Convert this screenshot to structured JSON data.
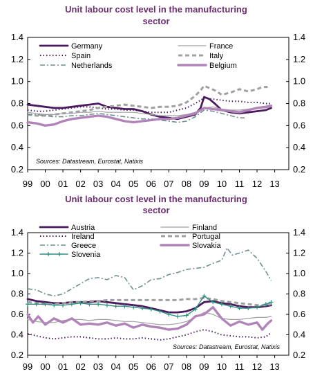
{
  "chart_data": [
    {
      "type": "line",
      "title_lines": [
        "Unit labour cost level in the manufacturing",
        "sector"
      ],
      "xlabel": "",
      "ylabel": "",
      "ylim": [
        0.2,
        1.4
      ],
      "yticks": [
        "0.2",
        "0.4",
        "0.6",
        "0.8",
        "1.0",
        "1.2",
        "1.4"
      ],
      "xlim": [
        1999,
        2013.8
      ],
      "xticks": [
        "99",
        "00",
        "01",
        "02",
        "03",
        "04",
        "05",
        "06",
        "07",
        "08",
        "09",
        "10",
        "11",
        "12",
        "13"
      ],
      "legend_position": "top",
      "source": "Sources: Datastream, Eurostat, Natixis",
      "series": [
        {
          "name": "Germany",
          "color": "#4b1a5e",
          "style": "solid-thick",
          "x": [
            1999,
            1999.5,
            2000,
            2000.5,
            2001,
            2001.5,
            2002,
            2002.5,
            2003,
            2003.5,
            2004,
            2004.5,
            2005,
            2005.5,
            2006,
            2006.5,
            2007,
            2007.5,
            2008,
            2008.5,
            2008.8,
            2009,
            2009.3,
            2009.6,
            2010,
            2010.5,
            2011,
            2011.5,
            2012,
            2012.5,
            2012.8
          ],
          "y": [
            0.79,
            0.78,
            0.77,
            0.76,
            0.76,
            0.77,
            0.78,
            0.79,
            0.8,
            0.77,
            0.76,
            0.75,
            0.75,
            0.73,
            0.7,
            0.68,
            0.67,
            0.66,
            0.68,
            0.7,
            0.76,
            0.86,
            0.84,
            0.8,
            0.74,
            0.72,
            0.71,
            0.72,
            0.73,
            0.74,
            0.76
          ]
        },
        {
          "name": "France",
          "color": "#a0a0a0",
          "style": "solid-thin",
          "x": [
            1999,
            1999.5,
            2000,
            2000.5,
            2001,
            2001.5,
            2002,
            2002.5,
            2003,
            2003.5,
            2004,
            2004.5,
            2005,
            2005.5,
            2006,
            2006.5,
            2007,
            2007.5,
            2008,
            2008.5,
            2009,
            2009.5,
            2010,
            2010.5,
            2011,
            2011.5,
            2012,
            2012.5,
            2012.8
          ],
          "y": [
            0.72,
            0.71,
            0.7,
            0.7,
            0.71,
            0.71,
            0.72,
            0.72,
            0.73,
            0.72,
            0.72,
            0.72,
            0.72,
            0.71,
            0.7,
            0.69,
            0.69,
            0.69,
            0.7,
            0.72,
            0.76,
            0.77,
            0.75,
            0.74,
            0.74,
            0.75,
            0.76,
            0.76,
            0.77
          ]
        },
        {
          "name": "Spain",
          "color": "#4b1a5e",
          "style": "dotted",
          "x": [
            1999,
            1999.5,
            2000,
            2000.5,
            2001,
            2001.5,
            2002,
            2002.5,
            2003,
            2003.5,
            2004,
            2004.5,
            2005,
            2005.5,
            2006,
            2006.5,
            2007,
            2007.5,
            2008,
            2008.5,
            2009,
            2009.5,
            2010,
            2010.5,
            2011,
            2011.5,
            2012,
            2012.5,
            2012.8
          ],
          "y": [
            0.74,
            0.73,
            0.73,
            0.74,
            0.75,
            0.76,
            0.77,
            0.77,
            0.76,
            0.75,
            0.75,
            0.74,
            0.74,
            0.73,
            0.72,
            0.72,
            0.72,
            0.74,
            0.76,
            0.8,
            0.85,
            0.84,
            0.83,
            0.82,
            0.82,
            0.81,
            0.81,
            0.8,
            0.8
          ]
        },
        {
          "name": "Italy",
          "color": "#a0a0a0",
          "style": "dashed-thick",
          "x": [
            1999,
            1999.5,
            2000,
            2000.5,
            2001,
            2001.5,
            2002,
            2002.5,
            2003,
            2003.5,
            2004,
            2004.5,
            2005,
            2005.5,
            2006,
            2006.5,
            2007,
            2007.5,
            2008,
            2008.5,
            2008.8,
            2009,
            2009.3,
            2009.6,
            2010,
            2010.5,
            2011,
            2011.5,
            2012,
            2012.3,
            2012.6
          ],
          "y": [
            0.7,
            0.69,
            0.69,
            0.7,
            0.71,
            0.72,
            0.73,
            0.74,
            0.76,
            0.77,
            0.78,
            0.79,
            0.78,
            0.77,
            0.76,
            0.77,
            0.77,
            0.78,
            0.81,
            0.87,
            0.92,
            0.96,
            0.94,
            0.92,
            0.88,
            0.9,
            0.93,
            0.91,
            0.93,
            0.95,
            0.95
          ]
        },
        {
          "name": "Netherlands",
          "color": "#6f8f8f",
          "style": "dashdot",
          "x": [
            1999,
            1999.5,
            2000,
            2000.5,
            2001,
            2001.5,
            2002,
            2002.5,
            2003,
            2003.5,
            2004,
            2004.5,
            2005,
            2005.5,
            2006,
            2006.5,
            2007,
            2007.5,
            2008,
            2008.5,
            2009,
            2009.5,
            2010,
            2010.5,
            2011,
            2011.3
          ],
          "y": [
            0.7,
            0.7,
            0.69,
            0.68,
            0.68,
            0.69,
            0.69,
            0.7,
            0.71,
            0.7,
            0.69,
            0.68,
            0.67,
            0.66,
            0.66,
            0.65,
            0.64,
            0.63,
            0.64,
            0.68,
            0.74,
            0.73,
            0.71,
            0.69,
            0.67,
            0.67
          ]
        },
        {
          "name": "Belgium",
          "color": "#b084b8",
          "style": "solid-thicker",
          "x": [
            1999,
            1999.5,
            2000,
            2000.5,
            2001,
            2001.5,
            2002,
            2002.5,
            2003,
            2003.5,
            2004,
            2004.5,
            2005,
            2005.5,
            2006,
            2006.5,
            2007,
            2007.5,
            2008,
            2008.5,
            2009,
            2009.5,
            2010,
            2010.5,
            2011,
            2011.5,
            2012,
            2012.5,
            2012.8
          ],
          "y": [
            0.63,
            0.62,
            0.6,
            0.61,
            0.64,
            0.66,
            0.67,
            0.68,
            0.69,
            0.68,
            0.66,
            0.64,
            0.63,
            0.64,
            0.65,
            0.66,
            0.66,
            0.67,
            0.69,
            0.71,
            0.76,
            0.75,
            0.74,
            0.73,
            0.72,
            0.74,
            0.76,
            0.77,
            0.78
          ]
        }
      ]
    },
    {
      "type": "line",
      "title_lines": [
        "Unit labour cost level in the manufacturing",
        "sector"
      ],
      "xlabel": "",
      "ylabel": "",
      "ylim": [
        0.2,
        1.4
      ],
      "yticks": [
        "0.2",
        "0.4",
        "0.6",
        "0.8",
        "1.0",
        "1.2",
        "1.4"
      ],
      "xlim": [
        1999,
        2013.8
      ],
      "xticks": [
        "99",
        "00",
        "01",
        "02",
        "03",
        "04",
        "05",
        "06",
        "07",
        "08",
        "09",
        "10",
        "11",
        "12",
        "13"
      ],
      "legend_position": "top",
      "source": "Sources: Datastream, Eurostat, Natixis",
      "series": [
        {
          "name": "Austria",
          "color": "#4b1a5e",
          "style": "solid-thick",
          "x": [
            1999,
            1999.5,
            2000,
            2000.5,
            2001,
            2001.5,
            2002,
            2002.5,
            2003,
            2003.5,
            2004,
            2004.5,
            2005,
            2005.5,
            2006,
            2006.5,
            2007,
            2007.5,
            2008,
            2008.5,
            2009,
            2009.5,
            2010,
            2010.5,
            2011,
            2011.5,
            2012,
            2012.5,
            2012.8
          ],
          "y": [
            0.75,
            0.73,
            0.72,
            0.71,
            0.71,
            0.72,
            0.72,
            0.72,
            0.73,
            0.72,
            0.71,
            0.7,
            0.69,
            0.68,
            0.66,
            0.64,
            0.62,
            0.62,
            0.63,
            0.66,
            0.72,
            0.73,
            0.71,
            0.7,
            0.68,
            0.67,
            0.67,
            0.68,
            0.69
          ]
        },
        {
          "name": "Finland",
          "color": "#a0a0a0",
          "style": "solid-thin",
          "x": [
            1999,
            1999.5,
            2000,
            2000.5,
            2001,
            2001.5,
            2002,
            2002.5,
            2003,
            2003.5,
            2004,
            2004.5,
            2005,
            2005.5,
            2006,
            2006.5,
            2007,
            2007.5,
            2008,
            2008.5,
            2009,
            2009.5,
            2010,
            2010.5,
            2011,
            2011.5,
            2012,
            2012.5,
            2012.8
          ],
          "y": [
            0.55,
            0.53,
            0.52,
            0.52,
            0.54,
            0.55,
            0.55,
            0.54,
            0.55,
            0.55,
            0.54,
            0.53,
            0.53,
            0.52,
            0.51,
            0.5,
            0.5,
            0.51,
            0.53,
            0.57,
            0.62,
            0.6,
            0.56,
            0.55,
            0.55,
            0.56,
            0.57,
            0.57,
            0.58
          ]
        },
        {
          "name": "Ireland",
          "color": "#4b1a5e",
          "style": "dotted",
          "x": [
            1999,
            1999.5,
            2000,
            2000.5,
            2001,
            2001.5,
            2002,
            2002.5,
            2003,
            2003.5,
            2004,
            2004.5,
            2005,
            2005.5,
            2006,
            2006.5,
            2007,
            2007.5,
            2008,
            2008.5,
            2009,
            2009.5,
            2010,
            2010.5,
            2011,
            2011.5,
            2012,
            2012.5,
            2012.8
          ],
          "y": [
            0.41,
            0.39,
            0.37,
            0.36,
            0.37,
            0.38,
            0.38,
            0.37,
            0.36,
            0.36,
            0.37,
            0.36,
            0.36,
            0.37,
            0.36,
            0.35,
            0.36,
            0.38,
            0.4,
            0.43,
            0.45,
            0.43,
            0.4,
            0.39,
            0.38,
            0.38,
            0.37,
            0.38,
            0.42
          ]
        },
        {
          "name": "Portugal",
          "color": "#a0a0a0",
          "style": "dashed-thick",
          "x": [
            1999,
            1999.5,
            2000,
            2000.5,
            2001,
            2001.5,
            2002,
            2002.5,
            2003,
            2003.5,
            2004,
            2004.5,
            2005,
            2005.5,
            2006,
            2006.5,
            2007,
            2007.5,
            2008,
            2008.5,
            2009,
            2009.5,
            2010,
            2010.5,
            2011,
            2011.5,
            2012,
            2012.5,
            2012.8
          ],
          "y": [
            0.72,
            0.71,
            0.7,
            0.7,
            0.71,
            0.72,
            0.72,
            0.73,
            0.73,
            0.74,
            0.74,
            0.74,
            0.74,
            0.74,
            0.74,
            0.74,
            0.74,
            0.74,
            0.75,
            0.75,
            0.76,
            0.75,
            0.73,
            0.72,
            0.71,
            0.7,
            0.69,
            0.69,
            0.7
          ]
        },
        {
          "name": "Greece",
          "color": "#6f8f8f",
          "style": "dashdot",
          "x": [
            1999,
            1999.5,
            2000,
            2000.5,
            2001,
            2001.5,
            2002,
            2002.5,
            2003,
            2003.5,
            2004,
            2004.5,
            2005,
            2005.5,
            2006,
            2006.5,
            2007,
            2007.5,
            2008,
            2008.5,
            2009,
            2009.5,
            2010,
            2010.3,
            2010.6,
            2011,
            2011.5,
            2012,
            2012.5,
            2012.8
          ],
          "y": [
            0.85,
            0.84,
            0.8,
            0.78,
            0.8,
            0.85,
            0.9,
            0.95,
            0.96,
            0.94,
            0.98,
            0.96,
            0.84,
            0.88,
            0.94,
            0.95,
            0.99,
            1.01,
            1.04,
            1.05,
            1.06,
            1.1,
            1.13,
            1.25,
            1.18,
            1.2,
            1.23,
            1.15,
            1.02,
            0.93
          ]
        },
        {
          "name": "Slovakia",
          "color": "#b084b8",
          "style": "solid-thicker",
          "x": [
            1999,
            1999.3,
            1999.6,
            2000,
            2000.5,
            2001,
            2001.5,
            2002,
            2002.5,
            2003,
            2003.5,
            2004,
            2004.5,
            2005,
            2005.5,
            2006,
            2006.5,
            2007,
            2007.5,
            2008,
            2008.5,
            2009,
            2009.5,
            2010,
            2010.5,
            2011,
            2011.5,
            2012,
            2012.3,
            2012.6,
            2012.8
          ],
          "y": [
            0.6,
            0.52,
            0.58,
            0.5,
            0.56,
            0.52,
            0.56,
            0.5,
            0.51,
            0.5,
            0.52,
            0.49,
            0.51,
            0.47,
            0.5,
            0.48,
            0.47,
            0.45,
            0.46,
            0.5,
            0.58,
            0.6,
            0.67,
            0.56,
            0.49,
            0.53,
            0.5,
            0.52,
            0.45,
            0.51,
            0.54
          ]
        },
        {
          "name": "Slovenia",
          "color": "#2f8f7f",
          "style": "plus-marker",
          "x": [
            1999,
            1999.5,
            2000,
            2000.5,
            2001,
            2001.5,
            2002,
            2002.5,
            2003,
            2003.5,
            2004,
            2004.5,
            2005,
            2005.5,
            2006,
            2006.5,
            2007,
            2007.5,
            2008,
            2008.5,
            2009,
            2009.5,
            2010,
            2010.5,
            2011,
            2011.5,
            2012,
            2012.5,
            2012.8
          ],
          "y": [
            0.7,
            0.7,
            0.7,
            0.69,
            0.69,
            0.7,
            0.71,
            0.7,
            0.7,
            0.69,
            0.68,
            0.68,
            0.67,
            0.66,
            0.65,
            0.63,
            0.6,
            0.58,
            0.59,
            0.65,
            0.78,
            0.72,
            0.7,
            0.68,
            0.66,
            0.66,
            0.67,
            0.7,
            0.72
          ]
        }
      ]
    }
  ]
}
